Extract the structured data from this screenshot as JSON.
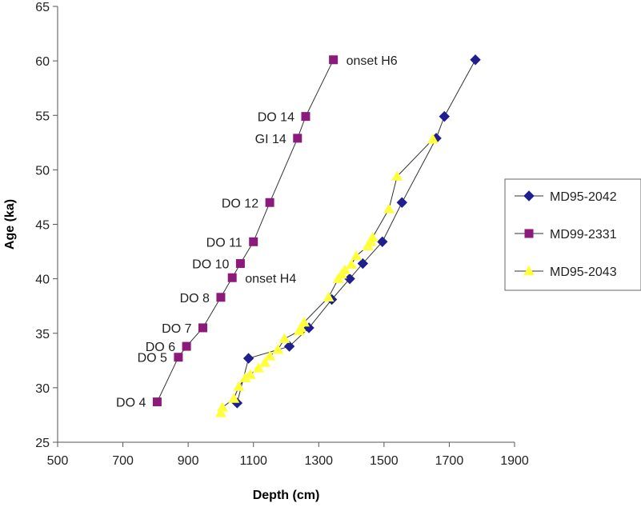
{
  "chart_data": {
    "type": "scatter",
    "xlabel": "Depth (cm)",
    "ylabel": "Age (ka)",
    "xlim": [
      500,
      1900
    ],
    "ylim": [
      25,
      65
    ],
    "xticks": [
      500,
      700,
      900,
      1100,
      1300,
      1500,
      1700,
      1900
    ],
    "yticks": [
      25,
      30,
      35,
      40,
      45,
      50,
      55,
      60,
      65
    ],
    "grid": false,
    "legend_position": "right",
    "series": [
      {
        "name": "MD95-2042",
        "marker": "diamond",
        "color": "#1f1f8f",
        "points": [
          [
            1050,
            28.6
          ],
          [
            1085,
            32.7
          ],
          [
            1210,
            33.8
          ],
          [
            1270,
            35.5
          ],
          [
            1340,
            38.1
          ],
          [
            1395,
            40.0
          ],
          [
            1435,
            41.4
          ],
          [
            1495,
            43.4
          ],
          [
            1555,
            47.0
          ],
          [
            1660,
            52.9
          ],
          [
            1685,
            54.9
          ],
          [
            1780,
            60.1
          ]
        ]
      },
      {
        "name": "MD99-2331",
        "marker": "square",
        "color": "#8b1a7a",
        "points": [
          [
            805,
            28.7
          ],
          [
            870,
            32.8
          ],
          [
            895,
            33.8
          ],
          [
            945,
            35.5
          ],
          [
            1000,
            38.3
          ],
          [
            1035,
            40.1
          ],
          [
            1060,
            41.4
          ],
          [
            1100,
            43.4
          ],
          [
            1150,
            47.0
          ],
          [
            1235,
            52.9
          ],
          [
            1260,
            54.9
          ],
          [
            1345,
            60.1
          ]
        ]
      },
      {
        "name": "MD95-2043",
        "marker": "triangle",
        "color": "#ffff3a",
        "points": [
          [
            1000,
            27.7
          ],
          [
            1005,
            28.2
          ],
          [
            1040,
            29.0
          ],
          [
            1055,
            30.1
          ],
          [
            1075,
            30.9
          ],
          [
            1090,
            31.2
          ],
          [
            1115,
            31.8
          ],
          [
            1135,
            32.3
          ],
          [
            1150,
            32.9
          ],
          [
            1175,
            33.5
          ],
          [
            1195,
            34.5
          ],
          [
            1240,
            35.2
          ],
          [
            1245,
            35.5
          ],
          [
            1255,
            36.0
          ],
          [
            1330,
            38.3
          ],
          [
            1360,
            40.0
          ],
          [
            1370,
            40.4
          ],
          [
            1380,
            40.8
          ],
          [
            1400,
            41.3
          ],
          [
            1415,
            42.1
          ],
          [
            1450,
            43.0
          ],
          [
            1460,
            43.4
          ],
          [
            1465,
            43.8
          ],
          [
            1515,
            46.4
          ],
          [
            1540,
            49.4
          ],
          [
            1650,
            52.8
          ]
        ]
      }
    ],
    "annotations": [
      {
        "text": "onset H6",
        "x": 1345,
        "y": 60.1,
        "side": "right"
      },
      {
        "text": "DO 14",
        "x": 1260,
        "y": 54.9,
        "side": "left"
      },
      {
        "text": "GI 14",
        "x": 1235,
        "y": 52.9,
        "side": "left"
      },
      {
        "text": "DO 12",
        "x": 1150,
        "y": 47.0,
        "side": "left"
      },
      {
        "text": "DO 11",
        "x": 1100,
        "y": 43.4,
        "side": "left"
      },
      {
        "text": "DO 10",
        "x": 1060,
        "y": 41.4,
        "side": "left"
      },
      {
        "text": "onset H4",
        "x": 1035,
        "y": 40.1,
        "side": "right"
      },
      {
        "text": "DO 8",
        "x": 1000,
        "y": 38.3,
        "side": "left"
      },
      {
        "text": "DO 7",
        "x": 945,
        "y": 35.5,
        "side": "left"
      },
      {
        "text": "DO 6",
        "x": 895,
        "y": 33.8,
        "side": "left"
      },
      {
        "text": "DO 5",
        "x": 870,
        "y": 32.8,
        "side": "left"
      },
      {
        "text": "DO 4",
        "x": 805,
        "y": 28.7,
        "side": "left"
      }
    ]
  }
}
